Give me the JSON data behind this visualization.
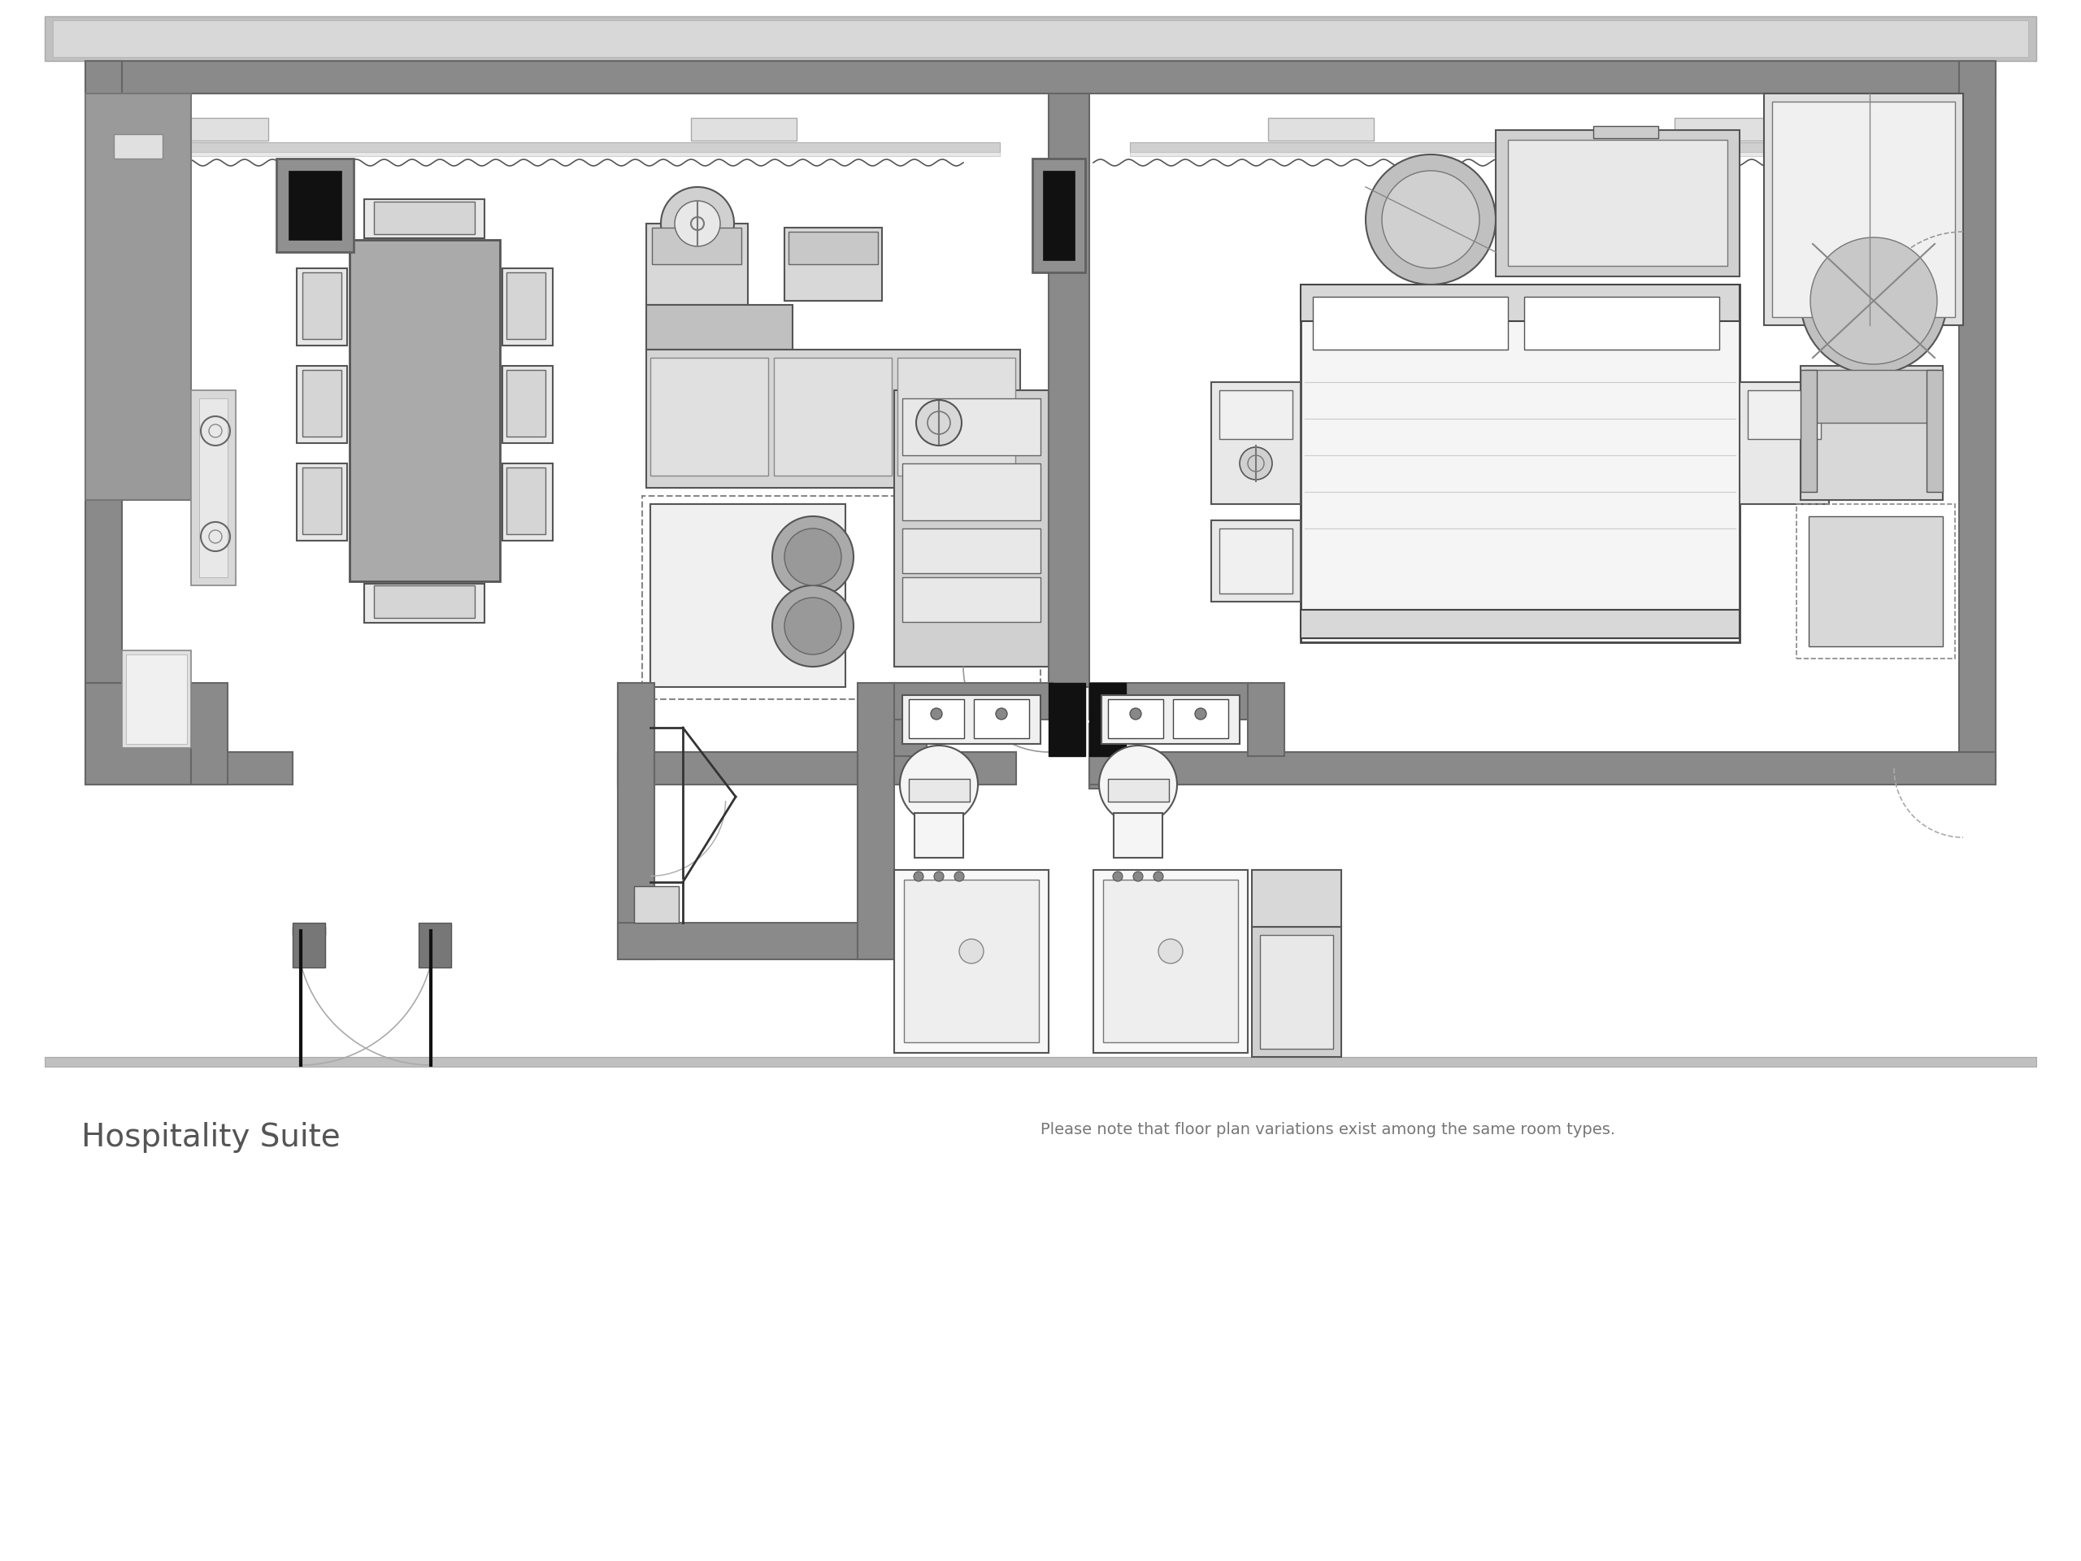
{
  "title": "Hospitality Suite",
  "subtitle": "Please note that floor plan variations exist among the same room types.",
  "bg": "#ffffff",
  "wall_dark": "#888888",
  "wall_med": "#999999",
  "wall_light": "#aaaaaa",
  "gray_fill": "#c8c8c8",
  "light_fill": "#e8e8e8",
  "furniture_gray": "#b8b8b8",
  "black": "#1a1a1a",
  "corridor_gray": "#c0c0c0",
  "fig_w": 25.6,
  "fig_h": 19.2
}
